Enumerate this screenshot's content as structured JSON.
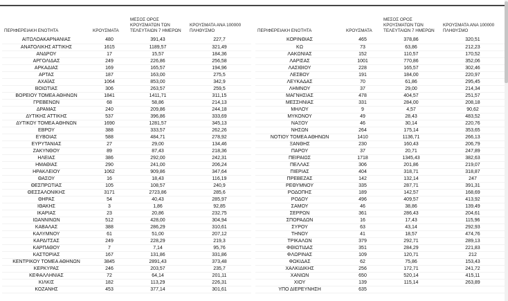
{
  "chart_data": {
    "type": "table",
    "headers": [
      "ΠΕΡΙΦΕΡΕΙΑΚΗ ΕΝΟΤΗΤΑ",
      "ΚΡΟΥΣΜΑΤΑ",
      "ΜΕΣΟΣ ΟΡΟΣ ΚΡΟΥΣΜΑΤΩΝ ΤΩΝ ΤΕΛΕΥΤΑΙΩΝ 7 ΗΜΕΡΩΝ",
      "ΚΡΟΥΣΜΑΤΑ ΑΝΑ 100000 ΠΛΗΘΥΣΜΟ"
    ],
    "left_rows": [
      [
        "ΑΙΤΩΛΟΑΚΑΡΝΑΝΙΑΣ",
        "480",
        "391,43",
        "227,7"
      ],
      [
        "ΑΝΑΤΟΛΙΚΗΣ ΑΤΤΙΚΗΣ",
        "1615",
        "1189,57",
        "321,49"
      ],
      [
        "ΑΝΔΡΟΥ",
        "17",
        "15,57",
        "184,36"
      ],
      [
        "ΑΡΓΟΛΙΔΑΣ",
        "249",
        "226,86",
        "256,58"
      ],
      [
        "ΑΡΚΑΔΙΑΣ",
        "169",
        "165,57",
        "194,96"
      ],
      [
        "ΑΡΤΑΣ",
        "187",
        "163,00",
        "275,5"
      ],
      [
        "ΑΧΑΪΑΣ",
        "1064",
        "853,00",
        "342,9"
      ],
      [
        "ΒΟΙΩΤΙΑΣ",
        "306",
        "263,57",
        "259,5"
      ],
      [
        "ΒΟΡΕΙΟΥ ΤΟΜΕΑ ΑΘΗΝΩΝ",
        "1841",
        "1411,71",
        "311,15"
      ],
      [
        "ΓΡΕΒΕΝΩΝ",
        "68",
        "58,86",
        "214,13"
      ],
      [
        "ΔΡΑΜΑΣ",
        "240",
        "209,86",
        "244,18"
      ],
      [
        "ΔΥΤΙΚΗΣ ΑΤΤΙΚΗΣ",
        "537",
        "396,86",
        "333,69"
      ],
      [
        "ΔΥΤΙΚΟΥ ΤΟΜΕΑ ΑΘΗΝΩΝ",
        "1690",
        "1281,57",
        "345,13"
      ],
      [
        "ΕΒΡΟΥ",
        "388",
        "333,57",
        "262,26"
      ],
      [
        "ΕΥΒΟΙΑΣ",
        "588",
        "484,71",
        "278,92"
      ],
      [
        "ΕΥΡΥΤΑΝΙΑΣ",
        "27",
        "29,00",
        "134,46"
      ],
      [
        "ΖΑΚΥΝΘΟΥ",
        "89",
        "87,43",
        "218,36"
      ],
      [
        "ΗΛΕΙΑΣ",
        "386",
        "292,00",
        "242,31"
      ],
      [
        "ΗΜΑΘΙΑΣ",
        "290",
        "241,00",
        "206,24"
      ],
      [
        "ΗΡΑΚΛΕΙΟΥ",
        "1062",
        "909,86",
        "347,64"
      ],
      [
        "ΘΑΣΟΥ",
        "16",
        "18,43",
        "116,19"
      ],
      [
        "ΘΕΣΠΡΩΤΙΑΣ",
        "105",
        "108,57",
        "240,9"
      ],
      [
        "ΘΕΣΣΑΛΟΝΙΚΗΣ",
        "3171",
        "2723,86",
        "285,6"
      ],
      [
        "ΘΗΡΑΣ",
        "54",
        "40,43",
        "285,97"
      ],
      [
        "ΙΘΑΚΗΣ",
        "3",
        "1,86",
        "92,85"
      ],
      [
        "ΙΚΑΡΙΑΣ",
        "23",
        "20,86",
        "232,75"
      ],
      [
        "ΙΩΑΝΝΙΝΩΝ",
        "512",
        "428,00",
        "304,94"
      ],
      [
        "ΚΑΒΑΛΑΣ",
        "388",
        "286,29",
        "310,61"
      ],
      [
        "ΚΑΛΥΜΝΟΥ",
        "61",
        "51,00",
        "207,12"
      ],
      [
        "ΚΑΡΔΙΤΣΑΣ",
        "249",
        "228,29",
        "219,3"
      ],
      [
        "ΚΑΡΠΑΘΟΥ",
        "7",
        "7,14",
        "95,76"
      ],
      [
        "ΚΑΣΤΟΡΙΑΣ",
        "167",
        "131,86",
        "331,86"
      ],
      [
        "ΚΕΝΤΡΙΚΟΥ ΤΟΜΕΑ ΑΘΗΝΩΝ",
        "3845",
        "2891,43",
        "373,48"
      ],
      [
        "ΚΕΡΚΥΡΑΣ",
        "246",
        "203,57",
        "235,7"
      ],
      [
        "ΚΕΦΑΛΛΗΝΙΑΣ",
        "72",
        "64,14",
        "201,11"
      ],
      [
        "ΚΙΛΚΙΣ",
        "182",
        "113,29",
        "226,31"
      ],
      [
        "ΚΟΖΑΝΗΣ",
        "453",
        "377,14",
        "301,61"
      ]
    ],
    "right_rows": [
      [
        "ΚΟΡΙΝΘΙΑΣ",
        "465",
        "378,86",
        "320,51"
      ],
      [
        "ΚΩ",
        "73",
        "63,86",
        "212,23"
      ],
      [
        "ΛΑΚΩΝΙΑΣ",
        "152",
        "110,57",
        "170,52"
      ],
      [
        "ΛΑΡΙΣΑΣ",
        "1001",
        "770,86",
        "352,06"
      ],
      [
        "ΛΑΣΙΘΙΟΥ",
        "228",
        "165,57",
        "302,46"
      ],
      [
        "ΛΕΣΒΟΥ",
        "191",
        "184,00",
        "220,97"
      ],
      [
        "ΛΕΥΚΑΔΑΣ",
        "70",
        "61,86",
        "295,45"
      ],
      [
        "ΛΗΜΝΟΥ",
        "37",
        "29,00",
        "214,34"
      ],
      [
        "ΜΑΓΝΗΣΙΑΣ",
        "478",
        "404,57",
        "251,57"
      ],
      [
        "ΜΕΣΣΗΝΙΑΣ",
        "331",
        "284,00",
        "208,18"
      ],
      [
        "ΜΗΛΟΥ",
        "9",
        "4,57",
        "90,62"
      ],
      [
        "ΜΥΚΟΝΟΥ",
        "49",
        "28,43",
        "483,52"
      ],
      [
        "ΝΑΞΟΥ",
        "46",
        "30,14",
        "220,76"
      ],
      [
        "ΝΗΣΩΝ",
        "264",
        "175,14",
        "353,65"
      ],
      [
        "ΝΟΤΙΟΥ ΤΟΜΕΑ ΑΘΗΝΩΝ",
        "1410",
        "1136,71",
        "266,13"
      ],
      [
        "ΞΑΝΘΗΣ",
        "230",
        "160,43",
        "206,79"
      ],
      [
        "ΠΑΡΟΥ",
        "37",
        "20,71",
        "247,89"
      ],
      [
        "ΠΕΙΡΑΙΩΣ",
        "1718",
        "1345,43",
        "382,63"
      ],
      [
        "ΠΕΛΛΑΣ",
        "306",
        "201,86",
        "219,07"
      ],
      [
        "ΠΙΕΡΙΑΣ",
        "404",
        "318,71",
        "318,87"
      ],
      [
        "ΠΡΕΒΕΖΑΣ",
        "142",
        "132,14",
        "247"
      ],
      [
        "ΡΕΘΥΜΝΟΥ",
        "335",
        "287,71",
        "391,31"
      ],
      [
        "ΡΟΔΟΠΗΣ",
        "189",
        "142,57",
        "168,69"
      ],
      [
        "ΡΟΔΟΥ",
        "496",
        "409,57",
        "413,92"
      ],
      [
        "ΣΑΜΟΥ",
        "46",
        "38,86",
        "139,49"
      ],
      [
        "ΣΕΡΡΩΝ",
        "361",
        "286,43",
        "204,61"
      ],
      [
        "ΣΠΟΡΑΔΩΝ",
        "16",
        "17,43",
        "115,96"
      ],
      [
        "ΣΥΡΟΥ",
        "63",
        "43,14",
        "292,93"
      ],
      [
        "ΤΗΝΟΥ",
        "41",
        "18,57",
        "474,76"
      ],
      [
        "ΤΡΙΚΑΛΩΝ",
        "379",
        "292,71",
        "289,13"
      ],
      [
        "ΦΘΙΩΤΙΔΑΣ",
        "351",
        "284,29",
        "221,83"
      ],
      [
        "ΦΛΩΡΙΝΑΣ",
        "109",
        "120,71",
        "212"
      ],
      [
        "ΦΩΚΙΔΑΣ",
        "62",
        "75,86",
        "153,43"
      ],
      [
        "ΧΑΛΚΙΔΙΚΗΣ",
        "256",
        "172,71",
        "241,72"
      ],
      [
        "ΧΑΝΙΩΝ",
        "650",
        "520,14",
        "415,11"
      ],
      [
        "ΧΙΟΥ",
        "139",
        "115,14",
        "263,89"
      ],
      [
        "ΥΠΟ ΔΙΕΡΕΥΝΗΣΗ",
        "635",
        "",
        ""
      ]
    ]
  }
}
